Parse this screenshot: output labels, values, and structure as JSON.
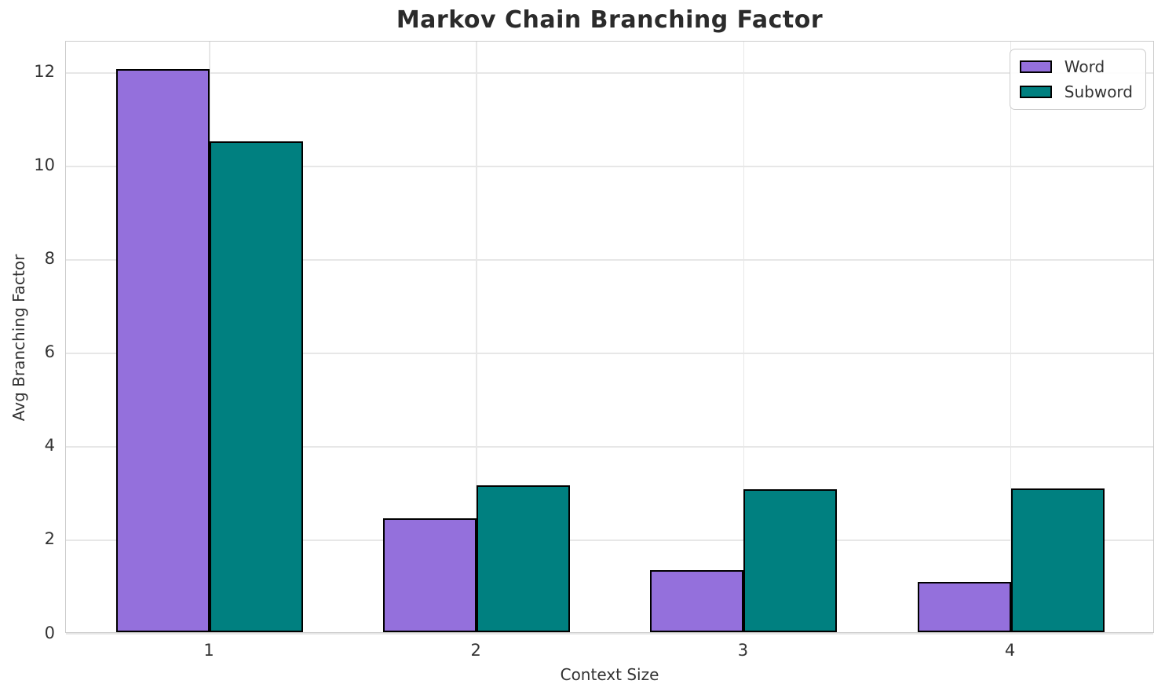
{
  "chart_data": {
    "type": "bar",
    "title": "Markov Chain Branching Factor",
    "xlabel": "Context Size",
    "ylabel": "Avg Branching Factor",
    "categories": [
      "1",
      "2",
      "3",
      "4"
    ],
    "series": [
      {
        "name": "Word",
        "color": "#9470DC",
        "values": [
          12.05,
          2.43,
          1.32,
          1.07
        ]
      },
      {
        "name": "Subword",
        "color": "#008080",
        "values": [
          10.5,
          3.15,
          3.05,
          3.08
        ]
      }
    ],
    "bar_edge_color": "#000000",
    "yticks": [
      0,
      2,
      4,
      6,
      8,
      10,
      12
    ],
    "ylim": [
      0,
      12.67
    ],
    "grid": true,
    "legend_position": "upper right"
  }
}
